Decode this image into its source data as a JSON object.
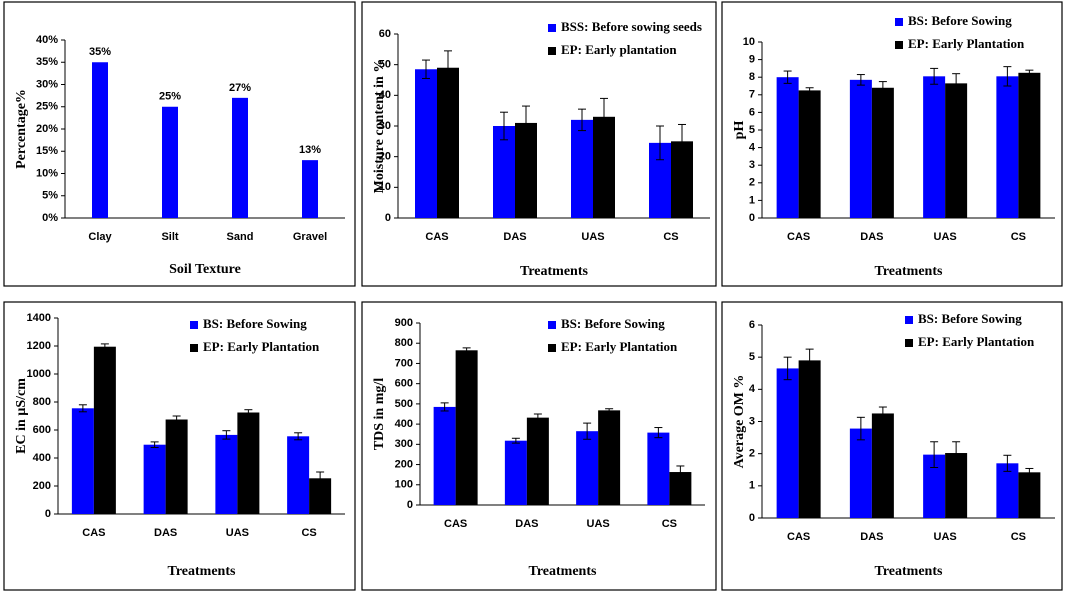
{
  "chart_data": [
    {
      "type": "bar",
      "xlabel": "Soil Texture",
      "ylabel": "Percentage%",
      "color": "#0000ff",
      "categories": [
        "Clay",
        "Silt",
        "Sand",
        "Gravel"
      ],
      "values": [
        35,
        25,
        27,
        13
      ],
      "value_labels": [
        "35%",
        "25%",
        "27%",
        "13%"
      ],
      "ylim": [
        0,
        40
      ],
      "yticks": [
        {
          "value": 0,
          "label": "0%"
        },
        {
          "value": 5,
          "label": "5%"
        },
        {
          "value": 10,
          "label": "10%"
        },
        {
          "value": 15,
          "label": "15%"
        },
        {
          "value": 20,
          "label": "20%"
        },
        {
          "value": 25,
          "label": "25%"
        },
        {
          "value": 30,
          "label": "30%"
        },
        {
          "value": 35,
          "label": "35%"
        },
        {
          "value": 40,
          "label": "40%"
        }
      ]
    },
    {
      "type": "bar",
      "xlabel": "Treatments",
      "ylabel": "Moisture content in %",
      "legend": "upper right",
      "categories": [
        "CAS",
        "DAS",
        "UAS",
        "CS"
      ],
      "series": [
        {
          "name": "BSS: Before sowing seeds",
          "color": "#0000ff",
          "values": [
            48.5,
            30,
            32,
            24.5
          ],
          "errors": [
            3,
            4.5,
            3.5,
            5.5
          ]
        },
        {
          "name": "EP: Early plantation",
          "color": "#000000",
          "values": [
            49,
            31,
            33,
            25
          ],
          "errors": [
            5.5,
            5.5,
            6,
            5.5
          ]
        }
      ],
      "ylim": [
        0,
        60
      ],
      "yticks": [
        0,
        10,
        20,
        30,
        40,
        50,
        60
      ]
    },
    {
      "type": "bar",
      "xlabel": "Treatments",
      "ylabel": "pH",
      "legend": "upper right",
      "categories": [
        "CAS",
        "DAS",
        "UAS",
        "CS"
      ],
      "series": [
        {
          "name": "BS: Before Sowing",
          "color": "#0000ff",
          "values": [
            8.0,
            7.85,
            8.05,
            8.05
          ],
          "errors": [
            0.35,
            0.3,
            0.45,
            0.55
          ]
        },
        {
          "name": "EP: Early Plantation",
          "color": "#000000",
          "values": [
            7.25,
            7.4,
            7.65,
            8.25
          ],
          "errors": [
            0.15,
            0.35,
            0.55,
            0.15
          ]
        }
      ],
      "ylim": [
        0,
        10
      ],
      "yticks": [
        0,
        1,
        2,
        3,
        4,
        5,
        6,
        7,
        8,
        9,
        10
      ]
    },
    {
      "type": "bar",
      "xlabel": "Treatments",
      "ylabel": "EC in µS/cm",
      "legend": "upper right",
      "categories": [
        "CAS",
        "DAS",
        "UAS",
        "CS"
      ],
      "series": [
        {
          "name": "BS: Before Sowing",
          "color": "#0000ff",
          "values": [
            755,
            495,
            565,
            555
          ],
          "errors": [
            25,
            20,
            30,
            25
          ]
        },
        {
          "name": "EP: Early Plantation",
          "color": "#000000",
          "values": [
            1195,
            675,
            725,
            255
          ],
          "errors": [
            20,
            25,
            20,
            45
          ]
        }
      ],
      "ylim": [
        0,
        1400
      ],
      "yticks": [
        0,
        200,
        400,
        600,
        800,
        1000,
        1200,
        1400
      ]
    },
    {
      "type": "bar",
      "xlabel": "Treatments",
      "ylabel": "TDS in mg/l",
      "legend": "upper right",
      "categories": [
        "CAS",
        "DAS",
        "UAS",
        "CS"
      ],
      "series": [
        {
          "name": "BS: Before Sowing",
          "color": "#0000ff",
          "values": [
            485,
            318,
            365,
            358
          ],
          "errors": [
            20,
            12,
            40,
            25
          ]
        },
        {
          "name": "EP: Early Plantation",
          "color": "#000000",
          "values": [
            765,
            432,
            468,
            163
          ],
          "errors": [
            12,
            18,
            8,
            30
          ]
        }
      ],
      "ylim": [
        0,
        900
      ],
      "yticks": [
        0,
        100,
        200,
        300,
        400,
        500,
        600,
        700,
        800,
        900
      ]
    },
    {
      "type": "bar",
      "xlabel": "Treatments",
      "ylabel": "Average OM %",
      "legend": "upper right",
      "categories": [
        "CAS",
        "DAS",
        "UAS",
        "CS"
      ],
      "series": [
        {
          "name": "BS: Before Sowing",
          "color": "#0000ff",
          "values": [
            4.65,
            2.78,
            1.97,
            1.7
          ],
          "errors": [
            0.35,
            0.35,
            0.4,
            0.25
          ]
        },
        {
          "name": "EP: Early Plantation",
          "color": "#000000",
          "values": [
            4.9,
            3.25,
            2.02,
            1.42
          ],
          "errors": [
            0.35,
            0.2,
            0.35,
            0.12
          ]
        }
      ],
      "ylim": [
        0,
        6
      ],
      "yticks": [
        0,
        1,
        2,
        3,
        4,
        5,
        6
      ]
    }
  ]
}
